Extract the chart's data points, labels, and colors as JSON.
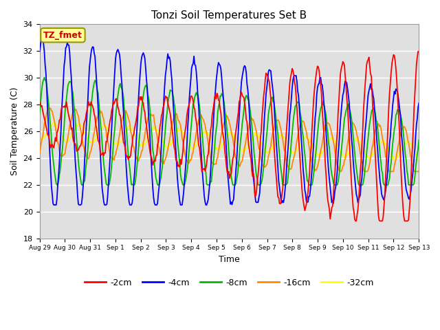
{
  "title": "Tonzi Soil Temperatures Set B",
  "xlabel": "Time",
  "ylabel": "Soil Temperature (C)",
  "ylim": [
    18,
    34
  ],
  "annotation": "TZ_fmet",
  "colors": {
    "-2cm": "#ff0000",
    "-4cm": "#0000ff",
    "-8cm": "#00bb00",
    "-16cm": "#ff8800",
    "-32cm": "#ffff00"
  },
  "legend_labels": [
    "-2cm",
    "-4cm",
    "-8cm",
    "-16cm",
    "-32cm"
  ],
  "background_color": "#e0e0e0",
  "x_tick_labels": [
    "Aug 29",
    "Aug 30",
    "Aug 31",
    "Sep 1",
    "Sep 2",
    "Sep 3",
    "Sep 4",
    "Sep 5",
    "Sep 6",
    "Sep 7",
    "Sep 8",
    "Sep 9",
    "Sep 10",
    "Sep 11",
    "Sep 12",
    "Sep 13"
  ],
  "yticks": [
    18,
    20,
    22,
    24,
    26,
    28,
    30,
    32,
    34
  ],
  "n_points": 480
}
